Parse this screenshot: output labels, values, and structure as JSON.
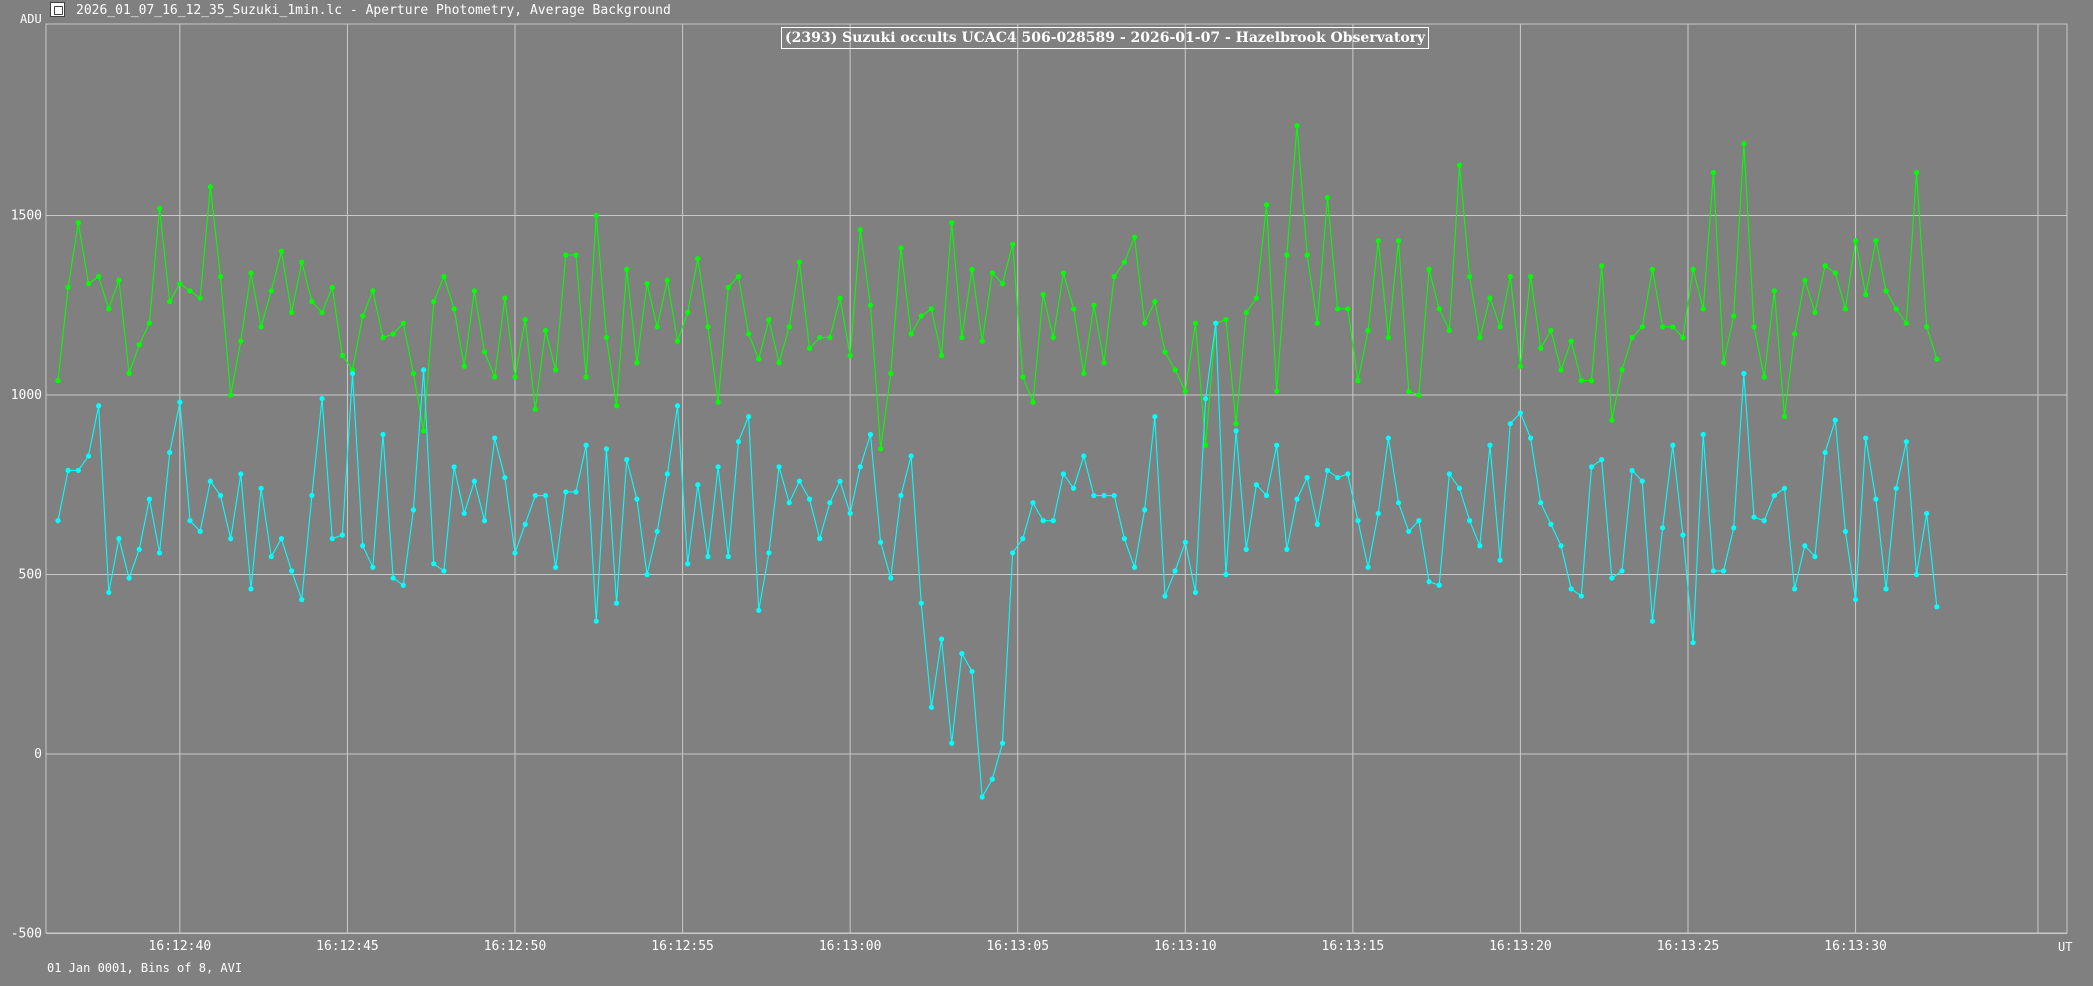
{
  "window": {
    "title": "2026_01_07_16_12_35_Suzuki_1min.lc - Aperture Photometry, Average Background",
    "icon": "lightcurve-app-icon"
  },
  "footer": {
    "text": "01 Jan 0001, Bins of 8, AVI"
  },
  "chart_data": {
    "type": "line",
    "title": "(2393) Suzuki occults UCAC4 506-028589 - 2026-01-07 - Hazelbrook Observatory",
    "ylabel": "ADU",
    "xlabel": "UT",
    "ylim": [
      -500,
      2050
    ],
    "xlim": [
      0,
      199
    ],
    "grid": true,
    "colors": {
      "target": "#00ffff",
      "comparison": "#00ff00",
      "background": "#808080",
      "grid": "#c8c8c8"
    },
    "xticks": [
      {
        "x": 12,
        "label": "16:12:40"
      },
      {
        "x": 28.5,
        "label": "16:12:45"
      },
      {
        "x": 45,
        "label": "16:12:50"
      },
      {
        "x": 61.5,
        "label": "16:12:55"
      },
      {
        "x": 78,
        "label": "16:13:00"
      },
      {
        "x": 94.5,
        "label": "16:13:05"
      },
      {
        "x": 111,
        "label": "16:13:10"
      },
      {
        "x": 127.5,
        "label": "16:13:15"
      },
      {
        "x": 144,
        "label": "16:13:20"
      },
      {
        "x": 160.5,
        "label": "16:13:25"
      },
      {
        "x": 177,
        "label": "16:13:30"
      }
    ],
    "yticks": [
      {
        "y": 1500,
        "label": "1500"
      },
      {
        "y": 1000,
        "label": "1000"
      },
      {
        "y": 500,
        "label": "500"
      },
      {
        "y": 0,
        "label": "0"
      },
      {
        "y": -500,
        "label": "-500"
      }
    ],
    "series": [
      {
        "key": "comparison",
        "values": [
          1040,
          1300,
          1480,
          1310,
          1330,
          1240,
          1320,
          1060,
          1140,
          1200,
          1520,
          1260,
          1310,
          1290,
          1270,
          1580,
          1330,
          1000,
          1150,
          1340,
          1190,
          1290,
          1400,
          1230,
          1370,
          1260,
          1230,
          1300,
          1110,
          1070,
          1220,
          1290,
          1160,
          1170,
          1200,
          1060,
          900,
          1260,
          1330,
          1240,
          1080,
          1290,
          1120,
          1050,
          1270,
          1050,
          1210,
          960,
          1180,
          1070,
          1390,
          1390,
          1050,
          1500,
          1160,
          970,
          1350,
          1090,
          1310,
          1190,
          1320,
          1150,
          1230,
          1380,
          1190,
          980,
          1300,
          1330,
          1170,
          1100,
          1210,
          1090,
          1190,
          1370,
          1130,
          1160,
          1160,
          1270,
          1110,
          1460,
          1250,
          850,
          1060,
          1410,
          1170,
          1220,
          1240,
          1110,
          1480,
          1160,
          1350,
          1150,
          1340,
          1310,
          1420,
          1050,
          980,
          1280,
          1160,
          1340,
          1240,
          1060,
          1250,
          1090,
          1330,
          1370,
          1440,
          1200,
          1260,
          1120,
          1070,
          1010,
          1200,
          860,
          1200,
          1210,
          920,
          1230,
          1270,
          1530,
          1010,
          1390,
          1750,
          1390,
          1200,
          1550,
          1240,
          1240,
          1040,
          1180,
          1430,
          1160,
          1430,
          1010,
          1000,
          1350,
          1240,
          1180,
          1640,
          1330,
          1160,
          1270,
          1190,
          1330,
          1080,
          1330,
          1130,
          1180,
          1070,
          1150,
          1040,
          1040,
          1360,
          930,
          1070,
          1160,
          1190,
          1350,
          1190,
          1190,
          1160,
          1350,
          1240,
          1620,
          1090,
          1220,
          1700,
          1190,
          1050,
          1290,
          940,
          1170,
          1320,
          1230,
          1360,
          1340,
          1240,
          1430,
          1280,
          1430,
          1290,
          1240,
          1200,
          1620,
          1190,
          1100
        ]
      },
      {
        "key": "target",
        "values": [
          650,
          790,
          790,
          830,
          970,
          450,
          600,
          490,
          570,
          710,
          560,
          840,
          980,
          650,
          620,
          760,
          720,
          600,
          780,
          460,
          740,
          550,
          600,
          510,
          430,
          720,
          990,
          600,
          610,
          1060,
          580,
          520,
          890,
          490,
          470,
          680,
          1070,
          530,
          510,
          800,
          670,
          760,
          650,
          880,
          770,
          560,
          640,
          720,
          720,
          520,
          730,
          730,
          860,
          370,
          850,
          420,
          820,
          710,
          500,
          620,
          780,
          970,
          530,
          750,
          550,
          800,
          550,
          870,
          940,
          400,
          560,
          800,
          700,
          760,
          710,
          600,
          700,
          760,
          670,
          800,
          890,
          590,
          490,
          720,
          830,
          420,
          130,
          320,
          30,
          280,
          230,
          -120,
          -70,
          30,
          560,
          600,
          700,
          650,
          650,
          780,
          740,
          830,
          720,
          720,
          720,
          600,
          520,
          680,
          940,
          440,
          510,
          590,
          450,
          990,
          1200,
          500,
          900,
          570,
          750,
          720,
          860,
          570,
          710,
          770,
          640,
          790,
          770,
          780,
          650,
          520,
          670,
          880,
          700,
          620,
          650,
          480,
          470,
          780,
          740,
          650,
          580,
          860,
          540,
          920,
          950,
          880,
          700,
          640,
          580,
          460,
          440,
          800,
          820,
          490,
          510,
          790,
          760,
          370,
          630,
          860,
          610,
          310,
          890,
          510,
          510,
          630,
          1060,
          660,
          650,
          720,
          740,
          460,
          580,
          550,
          840,
          930,
          620,
          430,
          880,
          710,
          460,
          740,
          870,
          500,
          670,
          410
        ]
      }
    ]
  }
}
